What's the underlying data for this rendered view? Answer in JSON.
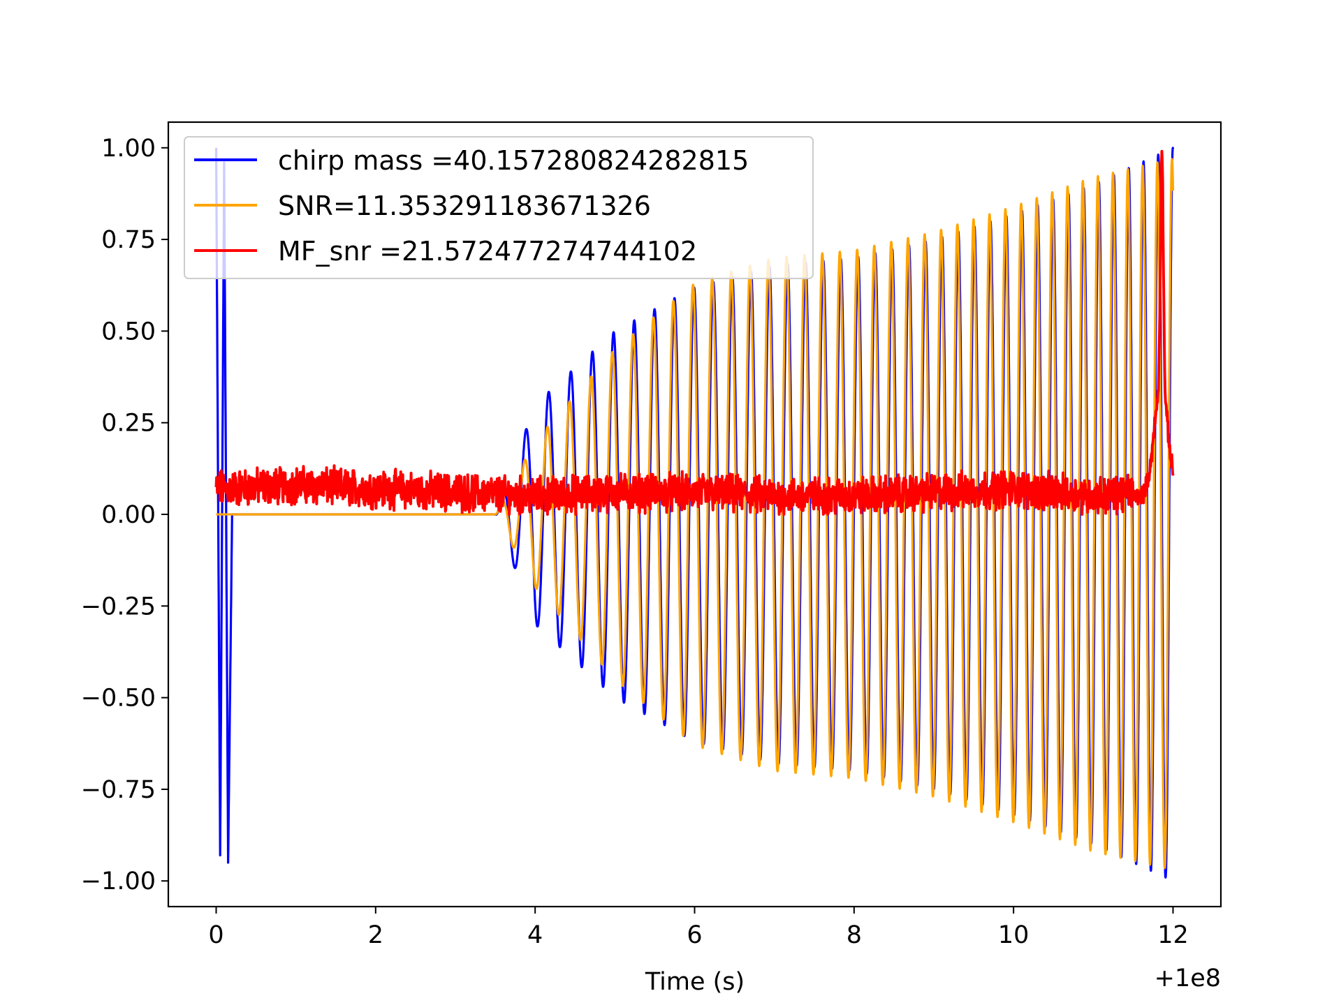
{
  "chart_data": {
    "type": "line",
    "title": "",
    "xlabel": "Time (s)",
    "ylabel": "",
    "x_offset_label": "+1e8",
    "xlim": [
      -0.6,
      12.6
    ],
    "ylim": [
      -1.07,
      1.07
    ],
    "x_ticks": [
      0,
      2,
      4,
      6,
      8,
      10,
      12
    ],
    "x_tick_labels": [
      "0",
      "2",
      "4",
      "6",
      "8",
      "10",
      "12"
    ],
    "y_ticks": [
      1.0,
      0.75,
      0.5,
      0.25,
      0.0,
      -0.25,
      -0.5,
      -0.75,
      -1.0
    ],
    "y_tick_labels": [
      "1.00",
      "0.75",
      "0.50",
      "0.25",
      "0.00",
      "−0.25",
      "−0.50",
      "−0.75",
      "−1.00"
    ],
    "grid": false,
    "legend_position": "top-left",
    "series": [
      {
        "name": "chirp mass =40.157280824282815",
        "color": "#0000ff",
        "description_points": {
          "x": [
            0.0,
            0.05,
            0.1,
            0.15,
            3.5,
            4.0,
            5.0,
            6.0,
            7.0,
            8.0,
            9.0,
            10.0,
            11.0,
            12.0
          ],
          "envelope": [
            1.0,
            -0.93,
            0.96,
            -0.95,
            0.0,
            0.3,
            0.5,
            0.62,
            0.68,
            0.7,
            0.75,
            0.82,
            0.9,
            1.0
          ]
        }
      },
      {
        "name": "SNR=11.353291183671326",
        "color": "#ffa500",
        "description_points": {
          "x": [
            0.0,
            3.5,
            4.0,
            5.0,
            6.0,
            7.0,
            8.0,
            9.0,
            10.0,
            11.0,
            12.0
          ],
          "envelope": [
            0.0,
            0.0,
            0.2,
            0.45,
            0.63,
            0.7,
            0.72,
            0.77,
            0.84,
            0.92,
            0.97
          ]
        }
      },
      {
        "name": "MF_snr =21.572477274744102",
        "color": "#ff0000",
        "description_points": {
          "x": [
            0.0,
            1.0,
            2.0,
            3.0,
            4.0,
            5.0,
            6.0,
            7.0,
            8.0,
            9.0,
            10.0,
            11.0,
            11.5,
            11.8,
            11.85,
            12.0
          ],
          "values": [
            0.07,
            0.08,
            0.07,
            0.06,
            0.05,
            0.06,
            0.06,
            0.05,
            0.05,
            0.06,
            0.07,
            0.05,
            0.06,
            0.3,
            1.0,
            0.05
          ]
        }
      }
    ]
  }
}
